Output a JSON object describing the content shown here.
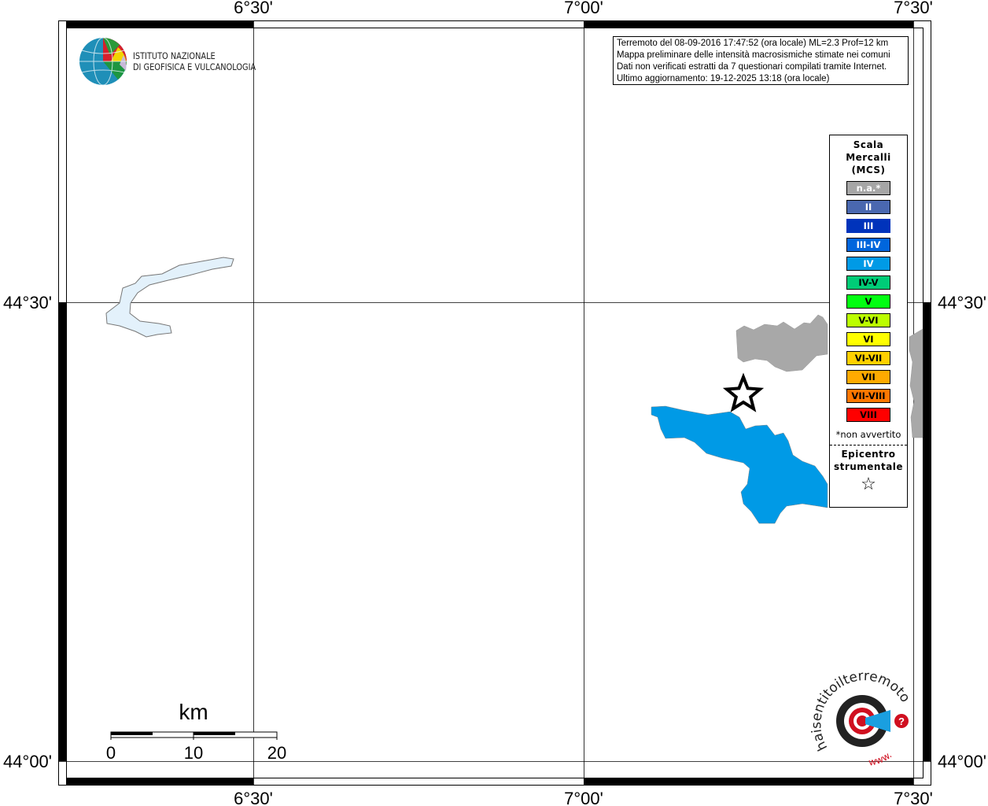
{
  "map": {
    "lon_labels": [
      "6°30'",
      "7°00'",
      "7°30'"
    ],
    "lat_labels": [
      "44°30'",
      "44°00'"
    ],
    "region_colors": {
      "intensity_IV": "#009ae6",
      "not_felt": "#a8a8a8",
      "lake": "#e3f1fb"
    }
  },
  "logo": {
    "ingv_line1": "ISTITUTO NAZIONALE",
    "ingv_line2": "DI GEOFISICA E VULCANOLOGIA",
    "sentito_text": "haisentitoilterremoto.it",
    "sentito_url": "www."
  },
  "info": {
    "lines": [
      "Terremoto del 08-09-2016 17:47:52 (ora locale) ML=2.3 Prof=12 km",
      "Mappa preliminare delle intensità macrosismiche stimate nei comuni",
      "Dati non verificati estratti da 7 questionari compilati tramite Internet.",
      "Ultimo aggiornamento: 19-12-2025 13:18 (ora locale)"
    ]
  },
  "legend": {
    "title": [
      "Scala",
      "Mercalli",
      "(MCS)"
    ],
    "items": [
      {
        "label": "n.a.*",
        "color": "#a6a6a6",
        "text": "#ffffff"
      },
      {
        "label": "II",
        "color": "#4a68b0",
        "text": "#ffffff"
      },
      {
        "label": "III",
        "color": "#0033bb",
        "text": "#ffffff"
      },
      {
        "label": "III-IV",
        "color": "#0066dd",
        "text": "#ffffff"
      },
      {
        "label": "IV",
        "color": "#009ae6",
        "text": "#ffffff"
      },
      {
        "label": "IV-V",
        "color": "#00cc77",
        "text": "#000000"
      },
      {
        "label": "V",
        "color": "#00ff11",
        "text": "#000000"
      },
      {
        "label": "V-VI",
        "color": "#bbff00",
        "text": "#000000"
      },
      {
        "label": "VI",
        "color": "#ffff00",
        "text": "#000000"
      },
      {
        "label": "VI-VII",
        "color": "#ffd000",
        "text": "#000000"
      },
      {
        "label": "VII",
        "color": "#ffaa00",
        "text": "#000000"
      },
      {
        "label": "VII-VIII",
        "color": "#ff7700",
        "text": "#000000"
      },
      {
        "label": "VIII",
        "color": "#ff0000",
        "text": "#000000"
      }
    ],
    "note": "*non avvertito",
    "epicenter": [
      "Epicentro",
      "strumentale"
    ],
    "epicenter_icon": "star-outline-icon"
  },
  "scalebar": {
    "unit": "km",
    "labels": [
      "0",
      "10",
      "20"
    ]
  }
}
